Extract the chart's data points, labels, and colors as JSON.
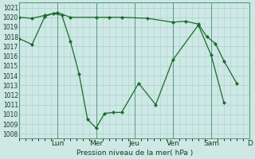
{
  "background_color": "#cde8e5",
  "grid_color": "#aed4d0",
  "line_color": "#1a6b2a",
  "marker_color": "#1a6b2a",
  "xlabel": "Pression niveau de la mer( hPa )",
  "ylim": [
    1007.5,
    1021.5
  ],
  "yticks": [
    1008,
    1009,
    1010,
    1011,
    1012,
    1013,
    1014,
    1015,
    1016,
    1017,
    1018,
    1019,
    1020,
    1021
  ],
  "xlim": [
    0,
    13.5
  ],
  "day_labels": [
    "Lun",
    "Mer",
    "Jeu",
    "Ven",
    "Sam",
    "D"
  ],
  "day_positions": [
    2.25,
    4.5,
    6.75,
    9.0,
    11.25,
    13.5
  ],
  "series1": {
    "x": [
      0.0,
      0.75,
      1.5,
      2.0,
      2.5,
      3.0,
      3.5,
      4.0,
      4.5,
      5.0,
      5.5,
      6.0,
      7.0,
      8.0,
      9.0,
      10.5,
      11.25,
      12.0
    ],
    "y": [
      1017.8,
      1017.2,
      1020.1,
      1020.4,
      1020.2,
      1017.5,
      1014.2,
      1009.5,
      1008.6,
      1010.1,
      1010.2,
      1010.2,
      1013.2,
      1011.0,
      1015.6,
      1019.2,
      1016.1,
      1011.2
    ]
  },
  "series2": {
    "x": [
      0.0,
      0.75,
      1.5,
      2.25,
      3.0,
      4.5,
      5.25,
      6.0,
      7.5,
      9.0,
      9.75,
      10.5,
      11.0,
      11.5,
      12.0,
      12.75
    ],
    "y": [
      1020.0,
      1019.9,
      1020.2,
      1020.5,
      1020.0,
      1020.0,
      1020.0,
      1020.0,
      1019.9,
      1019.5,
      1019.6,
      1019.3,
      1018.0,
      1017.3,
      1015.5,
      1013.2
    ]
  }
}
